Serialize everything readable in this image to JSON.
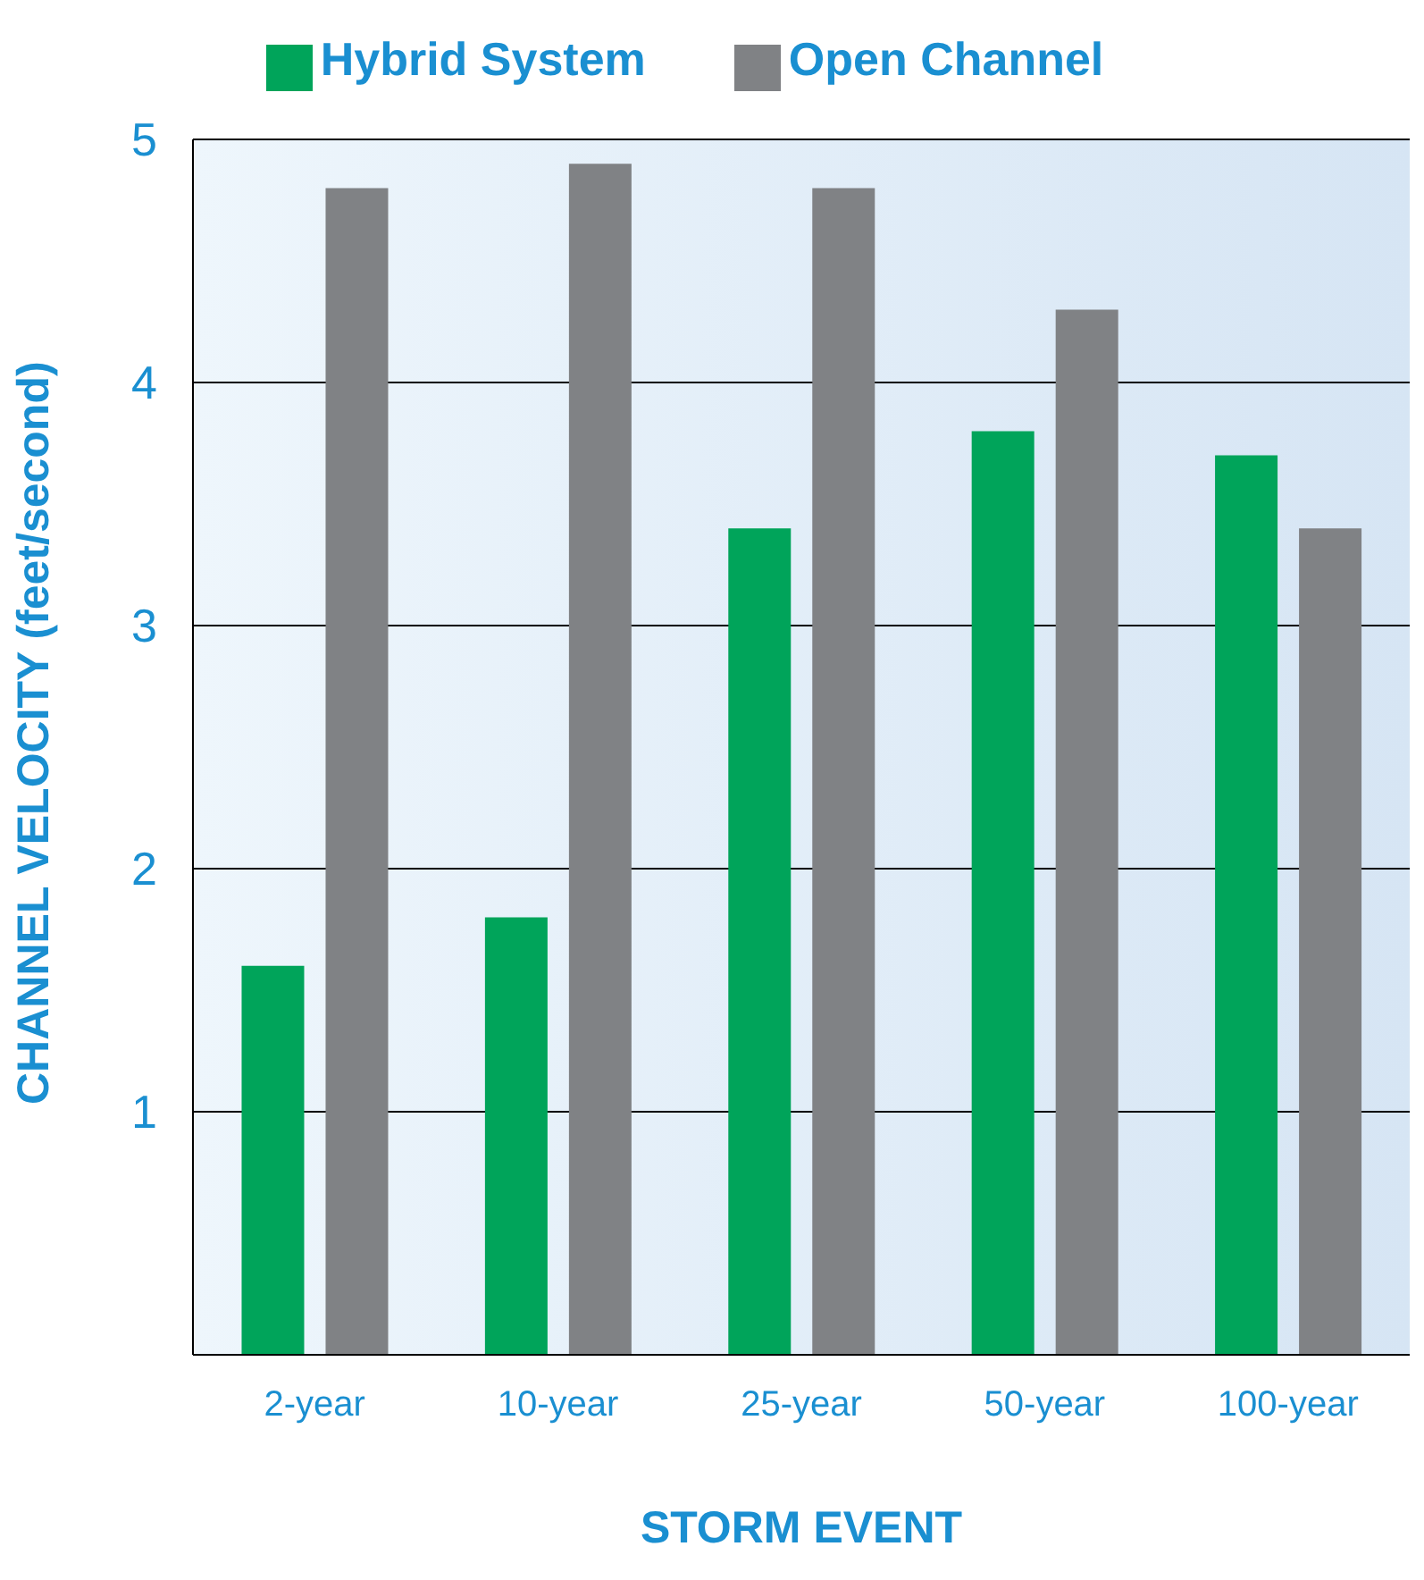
{
  "chart_data": {
    "type": "bar",
    "xlabel": "STORM EVENT",
    "ylabel": "CHANNEL VELOCITY  (feet/second)",
    "categories": [
      "2-year",
      "10-year",
      "25-year",
      "50-year",
      "100-year"
    ],
    "series": [
      {
        "name": "Hybrid System",
        "color": "#00a45a",
        "values": [
          1.6,
          1.8,
          3.4,
          3.8,
          3.7
        ]
      },
      {
        "name": "Open Channel",
        "color": "#808285",
        "values": [
          4.8,
          4.9,
          4.8,
          4.3,
          3.4
        ]
      }
    ],
    "ylim": [
      0,
      5
    ],
    "yticks": [
      1,
      2,
      3,
      4,
      5
    ],
    "grid": "y",
    "legend": "top"
  }
}
